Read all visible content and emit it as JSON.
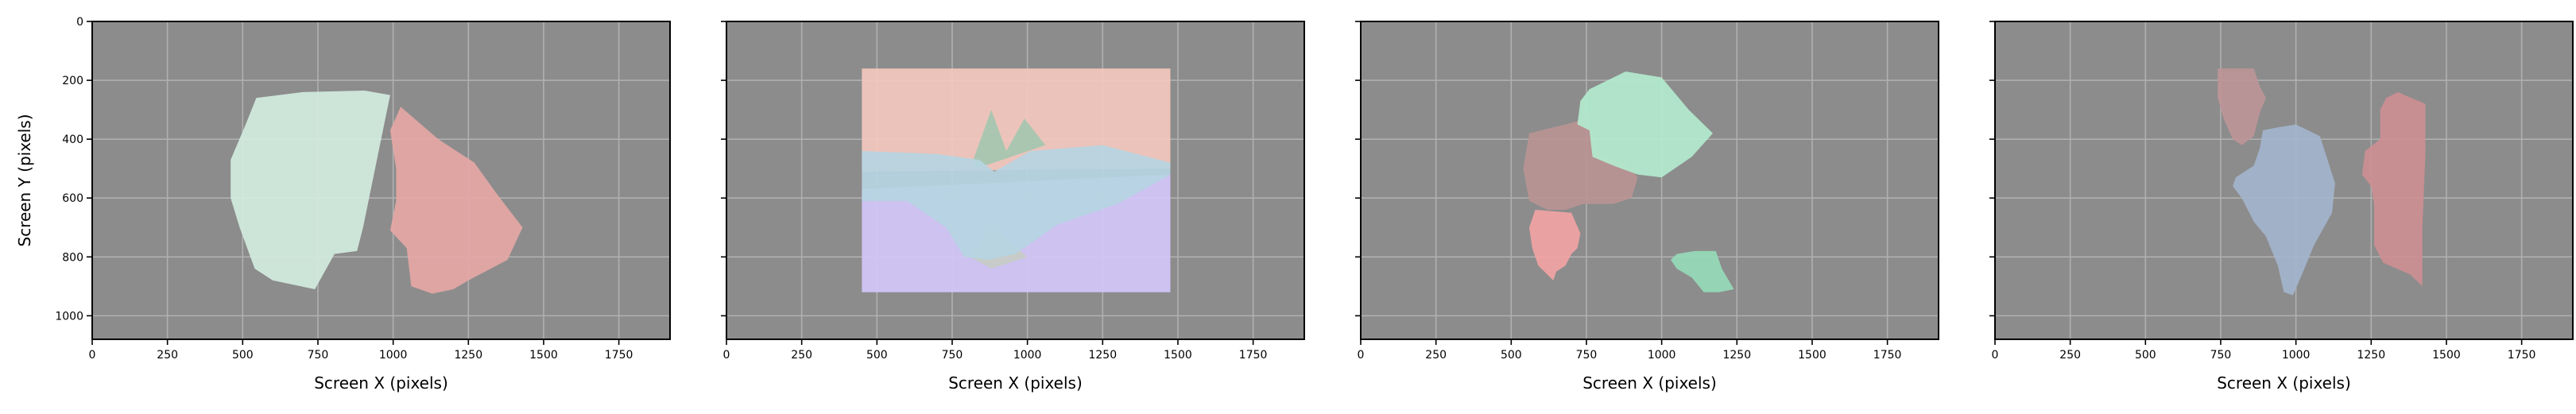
{
  "chart_data": {
    "type": "polygon-regions",
    "shared": {
      "xlabel": "Screen X (pixels)",
      "ylabel": "Screen Y (pixels)",
      "xlim": [
        0,
        1920
      ],
      "ylim": [
        1080,
        0
      ],
      "xticks": [
        0,
        250,
        500,
        750,
        1000,
        1250,
        1500,
        1750
      ],
      "yticks": [
        0,
        200,
        400,
        600,
        800,
        1000
      ],
      "grid": true,
      "background_color": "#8c8c8c",
      "grid_color": "#b0b0b0"
    },
    "panels": [
      {
        "regions": [
          {
            "color": "#d2ecdf",
            "points": [
              [
                545,
                260
              ],
              [
                700,
                240
              ],
              [
                905,
                235
              ],
              [
                990,
                250
              ],
              [
                960,
                400
              ],
              [
                900,
                700
              ],
              [
                880,
                780
              ],
              [
                805,
                790
              ],
              [
                740,
                910
              ],
              [
                600,
                880
              ],
              [
                540,
                840
              ],
              [
                490,
                700
              ],
              [
                460,
                600
              ],
              [
                460,
                470
              ],
              [
                510,
                350
              ]
            ]
          },
          {
            "color": "#e5a7a5",
            "points": [
              [
                1025,
                290
              ],
              [
                1150,
                400
              ],
              [
                1270,
                480
              ],
              [
                1340,
                580
              ],
              [
                1430,
                700
              ],
              [
                1380,
                810
              ],
              [
                1250,
                880
              ],
              [
                1200,
                910
              ],
              [
                1130,
                925
              ],
              [
                1060,
                900
              ],
              [
                1045,
                770
              ],
              [
                990,
                710
              ],
              [
                1010,
                610
              ],
              [
                1010,
                500
              ],
              [
                990,
                370
              ]
            ]
          }
        ]
      },
      {
        "regions": [
          {
            "color": "#d3c7f8",
            "points": [
              [
                450,
                570
              ],
              [
                1475,
                520
              ],
              [
                1475,
                920
              ],
              [
                450,
                920
              ]
            ]
          },
          {
            "color": "#f4c8be",
            "points": [
              [
                450,
                160
              ],
              [
                1475,
                160
              ],
              [
                1475,
                500
              ],
              [
                450,
                510
              ]
            ]
          },
          {
            "color": "#a4c7b0",
            "points": [
              [
                820,
                470
              ],
              [
                880,
                300
              ],
              [
                930,
                440
              ],
              [
                990,
                330
              ],
              [
                1060,
                420
              ],
              [
                830,
                500
              ]
            ]
          },
          {
            "color": "#c7ccc5",
            "points": [
              [
                810,
                800
              ],
              [
                880,
                840
              ],
              [
                1000,
                800
              ],
              [
                880,
                700
              ]
            ]
          },
          {
            "color": "#b6d5e2",
            "points": [
              [
                450,
                440
              ],
              [
                700,
                450
              ],
              [
                840,
                470
              ],
              [
                890,
                510
              ],
              [
                1010,
                440
              ],
              [
                1250,
                420
              ],
              [
                1475,
                480
              ],
              [
                1475,
                520
              ],
              [
                1300,
                620
              ],
              [
                1100,
                690
              ],
              [
                960,
                790
              ],
              [
                870,
                810
              ],
              [
                790,
                800
              ],
              [
                730,
                700
              ],
              [
                600,
                610
              ],
              [
                450,
                610
              ]
            ]
          }
        ]
      },
      {
        "regions": [
          {
            "color": "#ba9494",
            "points": [
              [
                560,
                380
              ],
              [
                680,
                350
              ],
              [
                750,
                330
              ],
              [
                800,
                460
              ],
              [
                880,
                480
              ],
              [
                920,
                530
              ],
              [
                900,
                600
              ],
              [
                840,
                620
              ],
              [
                740,
                620
              ],
              [
                680,
                640
              ],
              [
                620,
                640
              ],
              [
                560,
                610
              ],
              [
                540,
                500
              ]
            ]
          },
          {
            "color": "#b3eace",
            "points": [
              [
                760,
                230
              ],
              [
                880,
                170
              ],
              [
                1000,
                190
              ],
              [
                1090,
                300
              ],
              [
                1170,
                380
              ],
              [
                1100,
                460
              ],
              [
                1000,
                530
              ],
              [
                920,
                520
              ],
              [
                840,
                490
              ],
              [
                770,
                460
              ],
              [
                760,
                370
              ],
              [
                720,
                350
              ],
              [
                730,
                270
              ]
            ]
          },
          {
            "color": "#f2a3a4",
            "points": [
              [
                580,
                640
              ],
              [
                700,
                650
              ],
              [
                730,
                720
              ],
              [
                720,
                770
              ],
              [
                700,
                790
              ],
              [
                680,
                830
              ],
              [
                650,
                850
              ],
              [
                640,
                880
              ],
              [
                620,
                860
              ],
              [
                590,
                830
              ],
              [
                570,
                770
              ],
              [
                560,
                700
              ]
            ]
          },
          {
            "color": "#96dab8",
            "points": [
              [
                1050,
                790
              ],
              [
                1110,
                780
              ],
              [
                1180,
                780
              ],
              [
                1200,
                840
              ],
              [
                1240,
                910
              ],
              [
                1190,
                920
              ],
              [
                1140,
                920
              ],
              [
                1100,
                870
              ],
              [
                1050,
                840
              ],
              [
                1030,
                810
              ]
            ]
          }
        ]
      },
      {
        "regions": [
          {
            "color": "#bd9597",
            "points": [
              [
                740,
                160
              ],
              [
                860,
                160
              ],
              [
                880,
                220
              ],
              [
                900,
                260
              ],
              [
                880,
                310
              ],
              [
                860,
                390
              ],
              [
                820,
                420
              ],
              [
                790,
                400
              ],
              [
                760,
                330
              ],
              [
                740,
                260
              ]
            ]
          },
          {
            "color": "#a3b4cc",
            "points": [
              [
                890,
                370
              ],
              [
                940,
                360
              ],
              [
                1000,
                350
              ],
              [
                1080,
                390
              ],
              [
                1130,
                550
              ],
              [
                1120,
                650
              ],
              [
                1060,
                760
              ],
              [
                1020,
                860
              ],
              [
                990,
                930
              ],
              [
                960,
                920
              ],
              [
                940,
                830
              ],
              [
                900,
                730
              ],
              [
                860,
                680
              ],
              [
                820,
                600
              ],
              [
                790,
                560
              ],
              [
                800,
                530
              ],
              [
                860,
                490
              ],
              [
                880,
                430
              ]
            ]
          },
          {
            "color": "#cd8f93",
            "points": [
              [
                1300,
                260
              ],
              [
                1340,
                240
              ],
              [
                1360,
                250
              ],
              [
                1430,
                280
              ],
              [
                1430,
                450
              ],
              [
                1420,
                700
              ],
              [
                1420,
                900
              ],
              [
                1380,
                860
              ],
              [
                1290,
                820
              ],
              [
                1260,
                760
              ],
              [
                1260,
                620
              ],
              [
                1250,
                560
              ],
              [
                1220,
                520
              ],
              [
                1230,
                440
              ],
              [
                1280,
                400
              ],
              [
                1280,
                300
              ]
            ]
          }
        ]
      }
    ]
  }
}
